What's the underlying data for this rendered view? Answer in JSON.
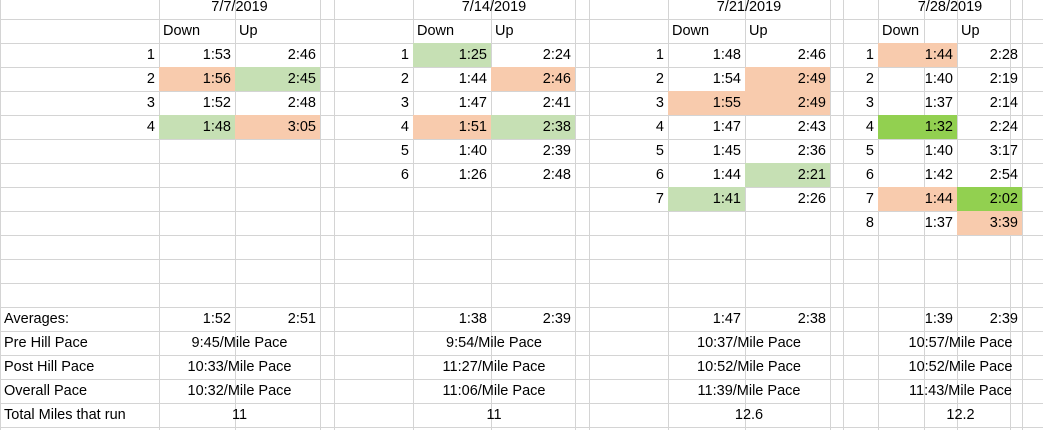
{
  "colors": {
    "gridline": "#d4d4d4",
    "slow_fill": "#f8cbad",
    "fast_fill": "#c6e0b4",
    "best_fill": "#92d050"
  },
  "column_headers": {
    "down": "Down",
    "up": "Up"
  },
  "weeks": [
    {
      "date": "7/7/2019",
      "repeats": [
        {
          "n": "1",
          "down": "1:53",
          "up": "2:46"
        },
        {
          "n": "2",
          "down": "1:56",
          "up": "2:45",
          "down_fill": "slow_fill",
          "up_fill": "fast_fill"
        },
        {
          "n": "3",
          "down": "1:52",
          "up": "2:48"
        },
        {
          "n": "4",
          "down": "1:48",
          "up": "3:05",
          "down_fill": "fast_fill",
          "up_fill": "slow_fill"
        }
      ],
      "avg_down": "1:52",
      "avg_up": "2:51",
      "pre_hill_pace": "9:45/Mile Pace",
      "post_hill_pace": "10:33/Mile Pace",
      "overall_pace": "10:32/Mile Pace",
      "total_miles": "11"
    },
    {
      "date": "7/14/2019",
      "repeats": [
        {
          "n": "1",
          "down": "1:25",
          "up": "2:24",
          "down_fill": "fast_fill"
        },
        {
          "n": "2",
          "down": "1:44",
          "up": "2:46",
          "up_fill": "slow_fill"
        },
        {
          "n": "3",
          "down": "1:47",
          "up": "2:41"
        },
        {
          "n": "4",
          "down": "1:51",
          "up": "2:38",
          "down_fill": "slow_fill",
          "up_fill": "fast_fill"
        },
        {
          "n": "5",
          "down": "1:40",
          "up": "2:39"
        },
        {
          "n": "6",
          "down": "1:26",
          "up": "2:48"
        }
      ],
      "avg_down": "1:38",
      "avg_up": "2:39",
      "pre_hill_pace": "9:54/Mile Pace",
      "post_hill_pace": "11:27/Mile Pace",
      "overall_pace": "11:06/Mile Pace",
      "total_miles": "11"
    },
    {
      "date": "7/21/2019",
      "repeats": [
        {
          "n": "1",
          "down": "1:48",
          "up": "2:46"
        },
        {
          "n": "2",
          "down": "1:54",
          "up": "2:49",
          "up_fill": "slow_fill"
        },
        {
          "n": "3",
          "down": "1:55",
          "up": "2:49",
          "down_fill": "slow_fill",
          "up_fill": "slow_fill"
        },
        {
          "n": "4",
          "down": "1:47",
          "up": "2:43"
        },
        {
          "n": "5",
          "down": "1:45",
          "up": "2:36"
        },
        {
          "n": "6",
          "down": "1:44",
          "up": "2:21",
          "up_fill": "fast_fill"
        },
        {
          "n": "7",
          "down": "1:41",
          "up": "2:26",
          "down_fill": "fast_fill"
        }
      ],
      "avg_down": "1:47",
      "avg_up": "2:38",
      "pre_hill_pace": "10:37/Mile Pace",
      "post_hill_pace": "10:52/Mile Pace",
      "overall_pace": "11:39/Mile Pace",
      "total_miles": "12.6"
    },
    {
      "date": "7/28/2019",
      "repeats": [
        {
          "n": "1",
          "down": "1:44",
          "up": "2:28",
          "down_fill": "slow_fill"
        },
        {
          "n": "2",
          "down": "1:40",
          "up": "2:19"
        },
        {
          "n": "3",
          "down": "1:37",
          "up": "2:14"
        },
        {
          "n": "4",
          "down": "1:32",
          "up": "2:24",
          "down_fill": "best_fill"
        },
        {
          "n": "5",
          "down": "1:40",
          "up": "3:17"
        },
        {
          "n": "6",
          "down": "1:42",
          "up": "2:54"
        },
        {
          "n": "7",
          "down": "1:44",
          "up": "2:02",
          "down_fill": "slow_fill",
          "up_fill": "best_fill"
        },
        {
          "n": "8",
          "down": "1:37",
          "up": "3:39",
          "up_fill": "slow_fill"
        }
      ],
      "avg_down": "1:39",
      "avg_up": "2:39",
      "pre_hill_pace": "10:57/Mile Pace",
      "post_hill_pace": "10:52/Mile Pace",
      "overall_pace": "11:43/Mile Pace",
      "total_miles": "12.2"
    }
  ],
  "row_labels": {
    "averages": "Averages:",
    "pre_hill_pace": "Pre Hill Pace",
    "post_hill_pace": "Post Hill Pace",
    "overall_pace": "Overall Pace",
    "total_miles": "Total Miles that run"
  }
}
